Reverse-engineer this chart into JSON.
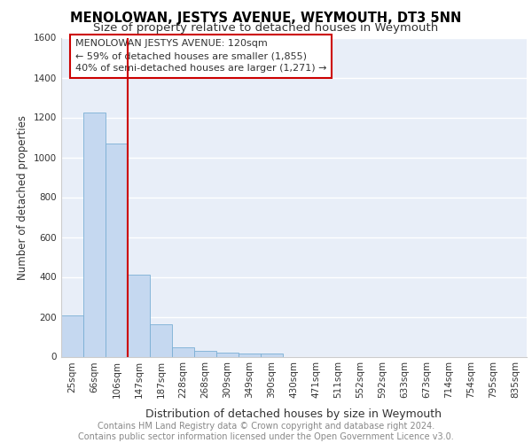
{
  "title": "MENOLOWAN, JESTYS AVENUE, WEYMOUTH, DT3 5NN",
  "subtitle": "Size of property relative to detached houses in Weymouth",
  "xlabel": "Distribution of detached houses by size in Weymouth",
  "ylabel": "Number of detached properties",
  "bar_color": "#c5d8f0",
  "bar_edge_color": "#7aafd4",
  "background_color": "#e8eef8",
  "grid_color": "#ffffff",
  "categories": [
    "25sqm",
    "66sqm",
    "106sqm",
    "147sqm",
    "187sqm",
    "228sqm",
    "268sqm",
    "309sqm",
    "349sqm",
    "390sqm",
    "430sqm",
    "471sqm",
    "511sqm",
    "552sqm",
    "592sqm",
    "633sqm",
    "673sqm",
    "714sqm",
    "754sqm",
    "795sqm",
    "835sqm"
  ],
  "values": [
    205,
    1225,
    1070,
    410,
    162,
    47,
    27,
    20,
    15,
    15,
    0,
    0,
    0,
    0,
    0,
    0,
    0,
    0,
    0,
    0,
    0
  ],
  "ylim": [
    0,
    1600
  ],
  "yticks": [
    0,
    200,
    400,
    600,
    800,
    1000,
    1200,
    1400,
    1600
  ],
  "property_line_x": 2.5,
  "property_line_color": "#cc0000",
  "annotation_box_text": "MENOLOWAN JESTYS AVENUE: 120sqm\n← 59% of detached houses are smaller (1,855)\n40% of semi-detached houses are larger (1,271) →",
  "annotation_box_color": "#cc0000",
  "footer_text": "Contains HM Land Registry data © Crown copyright and database right 2024.\nContains public sector information licensed under the Open Government Licence v3.0.",
  "title_fontsize": 10.5,
  "subtitle_fontsize": 9.5,
  "xlabel_fontsize": 9,
  "ylabel_fontsize": 8.5,
  "tick_fontsize": 7.5,
  "footer_fontsize": 7,
  "annotation_fontsize": 8
}
